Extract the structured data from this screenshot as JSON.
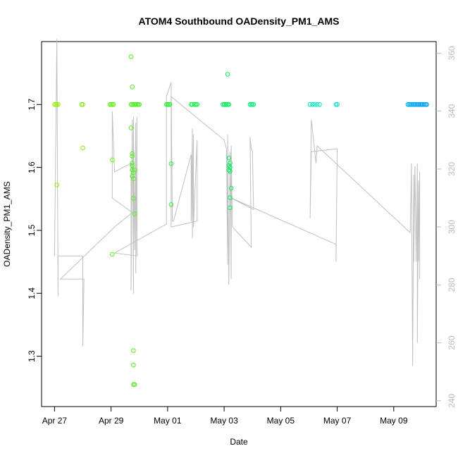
{
  "chart_data": {
    "type": "scatter",
    "title": "ATOM4 Southbound OADensity_PM1_AMS",
    "xlabel": "Date",
    "ylabel": "OADensity_PM1_AMS",
    "xlim": [
      "2018-04-26T13:00",
      "2018-05-10T12:00"
    ],
    "ylim": [
      1.22,
      1.8
    ],
    "y2lim": [
      238,
      364
    ],
    "x_ticks": [
      {
        "date": "2018-04-27",
        "label": "Apr 27"
      },
      {
        "date": "2018-04-29",
        "label": "Apr 29"
      },
      {
        "date": "2018-05-01",
        "label": "May 01"
      },
      {
        "date": "2018-05-03",
        "label": "May 03"
      },
      {
        "date": "2018-05-05",
        "label": "May 05"
      },
      {
        "date": "2018-05-07",
        "label": "May 07"
      },
      {
        "date": "2018-05-09",
        "label": "May 09"
      }
    ],
    "y_ticks": [
      "1.3",
      "1.4",
      "1.5",
      "1.6",
      "1.7"
    ],
    "y2_ticks": [
      "240",
      "260",
      "280",
      "300",
      "320",
      "340",
      "360"
    ],
    "grid": false,
    "series": [
      {
        "marker": "open-circle",
        "color_by_time": true,
        "points": [
          [
            "2018-04-27T00:00",
            1.7
          ],
          [
            "2018-04-27T01:00",
            1.7
          ],
          [
            "2018-04-27T02:00",
            1.7
          ],
          [
            "2018-04-27T03:00",
            1.7
          ],
          [
            "2018-04-27T02:00",
            1.572
          ],
          [
            "2018-04-27T23:00",
            1.7
          ],
          [
            "2018-04-28T00:00",
            1.7
          ],
          [
            "2018-04-28T00:00",
            1.631
          ],
          [
            "2018-04-28T23:00",
            1.7
          ],
          [
            "2018-04-29T00:00",
            1.7
          ],
          [
            "2018-04-29T01:00",
            1.7
          ],
          [
            "2018-04-29T02:00",
            1.7
          ],
          [
            "2018-04-29T01:00",
            1.612
          ],
          [
            "2018-04-29T01:00",
            1.462
          ],
          [
            "2018-04-29T17:00",
            1.776
          ],
          [
            "2018-04-29T17:00",
            1.663
          ],
          [
            "2018-04-29T18:00",
            1.728
          ],
          [
            "2018-04-29T17:00",
            1.7
          ],
          [
            "2018-04-29T18:00",
            1.7
          ],
          [
            "2018-04-29T19:00",
            1.7
          ],
          [
            "2018-04-29T20:00",
            1.7
          ],
          [
            "2018-04-29T21:00",
            1.7
          ],
          [
            "2018-04-29T22:00",
            1.7
          ],
          [
            "2018-04-29T23:00",
            1.7
          ],
          [
            "2018-04-30T00:00",
            1.7
          ],
          [
            "2018-04-29T18:00",
            1.622
          ],
          [
            "2018-04-29T18:00",
            1.618
          ],
          [
            "2018-04-29T18:00",
            1.607
          ],
          [
            "2018-04-29T18:00",
            1.603
          ],
          [
            "2018-04-29T18:00",
            1.596
          ],
          [
            "2018-04-29T19:00",
            1.592
          ],
          [
            "2018-04-29T20:00",
            1.596
          ],
          [
            "2018-04-29T18:00",
            1.586
          ],
          [
            "2018-04-29T19:00",
            1.582
          ],
          [
            "2018-04-29T19:00",
            1.551
          ],
          [
            "2018-04-29T20:00",
            1.526
          ],
          [
            "2018-04-29T19:00",
            1.309
          ],
          [
            "2018-04-29T19:00",
            1.286
          ],
          [
            "2018-04-29T19:00",
            1.255
          ],
          [
            "2018-04-29T20:00",
            1.255
          ],
          [
            "2018-04-30T23:00",
            1.7
          ],
          [
            "2018-05-01T00:00",
            1.7
          ],
          [
            "2018-05-01T01:00",
            1.7
          ],
          [
            "2018-05-01T02:00",
            1.7
          ],
          [
            "2018-05-01T03:00",
            1.606
          ],
          [
            "2018-05-01T03:00",
            1.541
          ],
          [
            "2018-05-01T20:00",
            1.7
          ],
          [
            "2018-05-01T21:00",
            1.7
          ],
          [
            "2018-05-01T23:00",
            1.7
          ],
          [
            "2018-05-02T00:00",
            1.7
          ],
          [
            "2018-05-02T01:00",
            1.7
          ],
          [
            "2018-05-02T23:00",
            1.7
          ],
          [
            "2018-05-03T00:00",
            1.7
          ],
          [
            "2018-05-03T01:00",
            1.7
          ],
          [
            "2018-05-03T02:00",
            1.7
          ],
          [
            "2018-05-03T03:00",
            1.7
          ],
          [
            "2018-05-03T04:00",
            1.7
          ],
          [
            "2018-05-03T03:00",
            1.748
          ],
          [
            "2018-05-03T04:00",
            1.615
          ],
          [
            "2018-05-03T05:00",
            1.607
          ],
          [
            "2018-05-03T04:00",
            1.603
          ],
          [
            "2018-05-03T05:00",
            1.6
          ],
          [
            "2018-05-03T04:00",
            1.596
          ],
          [
            "2018-05-03T05:00",
            1.594
          ],
          [
            "2018-05-03T06:00",
            1.567
          ],
          [
            "2018-05-03T05:00",
            1.552
          ],
          [
            "2018-05-03T05:00",
            1.536
          ],
          [
            "2018-05-03T22:00",
            1.7
          ],
          [
            "2018-05-03T23:00",
            1.7
          ],
          [
            "2018-05-04T00:00",
            1.7
          ],
          [
            "2018-05-04T01:00",
            1.7
          ],
          [
            "2018-05-06T01:00",
            1.7
          ],
          [
            "2018-05-06T03:00",
            1.7
          ],
          [
            "2018-05-06T05:00",
            1.7
          ],
          [
            "2018-05-06T07:00",
            1.7
          ],
          [
            "2018-05-06T09:00",
            1.7
          ],
          [
            "2018-05-06T23:00",
            1.7
          ],
          [
            "2018-05-07T00:00",
            1.7
          ],
          [
            "2018-05-09T12:00",
            1.7
          ],
          [
            "2018-05-09T13:00",
            1.7
          ],
          [
            "2018-05-09T14:00",
            1.7
          ],
          [
            "2018-05-09T15:00",
            1.7
          ],
          [
            "2018-05-09T16:00",
            1.7
          ],
          [
            "2018-05-09T17:00",
            1.7
          ],
          [
            "2018-05-09T18:00",
            1.7
          ],
          [
            "2018-05-09T19:00",
            1.7
          ],
          [
            "2018-05-09T20:00",
            1.7
          ],
          [
            "2018-05-09T21:00",
            1.7
          ],
          [
            "2018-05-09T22:00",
            1.7
          ],
          [
            "2018-05-09T23:00",
            1.7
          ],
          [
            "2018-05-10T00:00",
            1.7
          ],
          [
            "2018-05-10T01:00",
            1.7
          ],
          [
            "2018-05-10T02:00",
            1.7
          ],
          [
            "2018-05-10T03:00",
            1.7
          ],
          [
            "2018-05-10T04:00",
            1.7
          ]
        ]
      },
      {
        "axis": "right",
        "color": "#c0c0c0",
        "line": [
          [
            "2018-04-27T00:00",
            290
          ],
          [
            "2018-04-27T02:00",
            365
          ],
          [
            "2018-04-27T03:00",
            276
          ],
          [
            "2018-04-27T03:00",
            290
          ],
          [
            "2018-04-28T00:00",
            290
          ],
          [
            "2018-04-28T00:00",
            259
          ],
          [
            "2018-04-28T01:00",
            282
          ],
          [
            "2018-04-27T05:00",
            282
          ],
          [
            "2018-04-29T03:00",
            300
          ],
          [
            "2018-04-29T18:00",
            305
          ],
          [
            "2018-04-29T01:00",
            310
          ],
          [
            "2018-04-29T01:00",
            340
          ],
          [
            "2018-04-29T03:00",
            319
          ],
          [
            "2018-04-29T17:00",
            322
          ],
          [
            "2018-04-29T17:00",
            278
          ],
          [
            "2018-04-29T18:00",
            337
          ],
          [
            "2018-04-29T19:00",
            277
          ],
          [
            "2018-04-29T19:00",
            338
          ],
          [
            "2018-04-29T20:00",
            292
          ],
          [
            "2018-04-29T21:00",
            336
          ],
          [
            "2018-04-29T21:00",
            284
          ],
          [
            "2018-04-29T22:00",
            338
          ],
          [
            "2018-04-29T22:00",
            290
          ],
          [
            "2018-04-29T03:00",
            291
          ],
          [
            "2018-04-30T23:00",
            301
          ],
          [
            "2018-04-30T23:00",
            345
          ],
          [
            "2018-05-01T03:00",
            350
          ],
          [
            "2018-05-01T04:00",
            302
          ],
          [
            "2018-05-01T05:00",
            302
          ],
          [
            "2018-05-01T20:00",
            325
          ],
          [
            "2018-05-01T20:00",
            302
          ],
          [
            "2018-05-01T21:00",
            334
          ],
          [
            "2018-05-01T21:00",
            296
          ],
          [
            "2018-05-01T22:00",
            332
          ],
          [
            "2018-05-01T22:00",
            300
          ],
          [
            "2018-05-02T01:00",
            330
          ],
          [
            "2018-05-02T01:00",
            302
          ],
          [
            "2018-05-01T03:00",
            300
          ],
          [
            "2018-05-01T03:00",
            345
          ],
          [
            "2018-05-03T00:00",
            330
          ],
          [
            "2018-05-03T02:00",
            327
          ],
          [
            "2018-05-03T03:00",
            287
          ],
          [
            "2018-05-03T03:00",
            332
          ],
          [
            "2018-05-03T04:00",
            280
          ],
          [
            "2018-05-03T05:00",
            326
          ],
          [
            "2018-05-03T06:00",
            282
          ],
          [
            "2018-05-03T06:00",
            328
          ],
          [
            "2018-05-03T07:00",
            300
          ],
          [
            "2018-05-03T23:00",
            293
          ],
          [
            "2018-05-03T22:00",
            331
          ],
          [
            "2018-05-03T23:00",
            327
          ],
          [
            "2018-05-04T00:00",
            326
          ],
          [
            "2018-05-04T01:00",
            306
          ],
          [
            "2018-05-03T06:00",
            310
          ],
          [
            "2018-05-06T23:00",
            294
          ],
          [
            "2018-05-06T23:00",
            288
          ],
          [
            "2018-05-07T00:00",
            327
          ],
          [
            "2018-05-06T02:00",
            326
          ],
          [
            "2018-05-06T01:00",
            303
          ],
          [
            "2018-05-06T02:00",
            337
          ],
          [
            "2018-05-06T06:00",
            322
          ],
          [
            "2018-05-06T07:00",
            328
          ],
          [
            "2018-05-09T14:00",
            298
          ],
          [
            "2018-05-09T15:00",
            322
          ],
          [
            "2018-05-09T16:00",
            252
          ],
          [
            "2018-05-09T17:00",
            318
          ],
          [
            "2018-05-09T17:00",
            288
          ],
          [
            "2018-05-09T18:00",
            321
          ],
          [
            "2018-05-09T19:00",
            288
          ],
          [
            "2018-05-09T20:00",
            322
          ],
          [
            "2018-05-09T20:00",
            260
          ],
          [
            "2018-05-09T21:00",
            316
          ],
          [
            "2018-05-09T21:00",
            288
          ],
          [
            "2018-05-09T22:00",
            319
          ],
          [
            "2018-05-09T22:00",
            282
          ]
        ]
      }
    ]
  }
}
